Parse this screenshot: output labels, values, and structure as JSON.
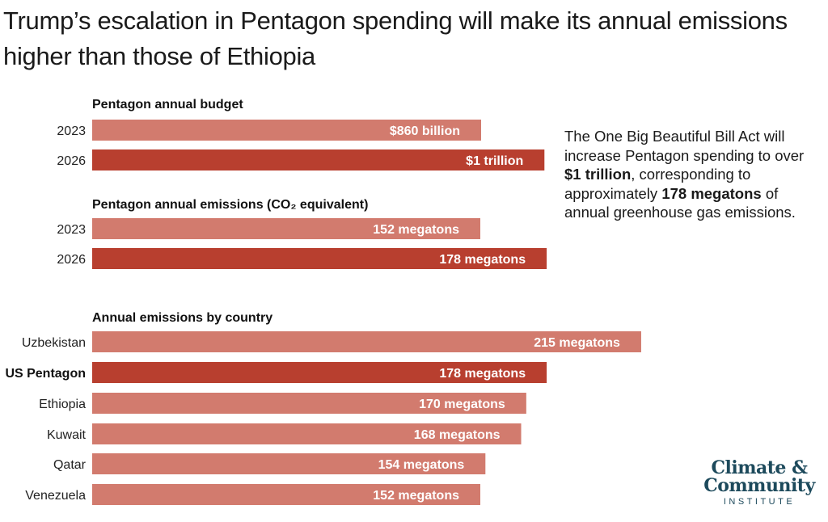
{
  "title": "Trump’s escalation in Pentagon spending will make its annual emissions higher than those of Ethiopia",
  "colors": {
    "light_bar": "#d27b6e",
    "dark_bar": "#b83f2f",
    "logo": "#1d4a5c"
  },
  "chart_data": [
    {
      "type": "bar",
      "orientation": "horizontal",
      "title": "Pentagon annual budget",
      "categories": [
        "2023",
        "2026"
      ],
      "values": [
        860,
        1000
      ],
      "unit": "billion USD",
      "value_labels": [
        "$860 billion",
        "$1 trillion"
      ],
      "highlight": [
        false,
        true
      ]
    },
    {
      "type": "bar",
      "orientation": "horizontal",
      "title": "Pentagon annual emissions (CO₂ equivalent)",
      "categories": [
        "2023",
        "2026"
      ],
      "values": [
        152,
        178
      ],
      "unit": "megatons",
      "value_labels": [
        "152 megatons",
        "178 megatons"
      ],
      "highlight": [
        false,
        true
      ]
    },
    {
      "type": "bar",
      "orientation": "horizontal",
      "title": "Annual emissions by country",
      "categories": [
        "Uzbekistan",
        "US Pentagon",
        "Ethiopia",
        "Kuwait",
        "Qatar",
        "Venezuela"
      ],
      "values": [
        215,
        178,
        170,
        168,
        154,
        152
      ],
      "unit": "megatons",
      "value_labels": [
        "215 megatons",
        "178 megatons",
        "170 megatons",
        "168 megatons",
        "154 megatons",
        "152 megatons"
      ],
      "highlight": [
        false,
        true,
        false,
        false,
        false,
        false
      ]
    }
  ],
  "annotation": {
    "part1": "The One Big Beautiful Bill Act will increase Pentagon spending to over ",
    "bold1": "$1 trillion",
    "part2": ", corresponding to approximately ",
    "bold2": "178 megatons",
    "part3": " of annual greenhouse gas emissions."
  },
  "logo": {
    "line1": "Climate &",
    "line2": "Community",
    "line3": "INSTITUTE"
  }
}
